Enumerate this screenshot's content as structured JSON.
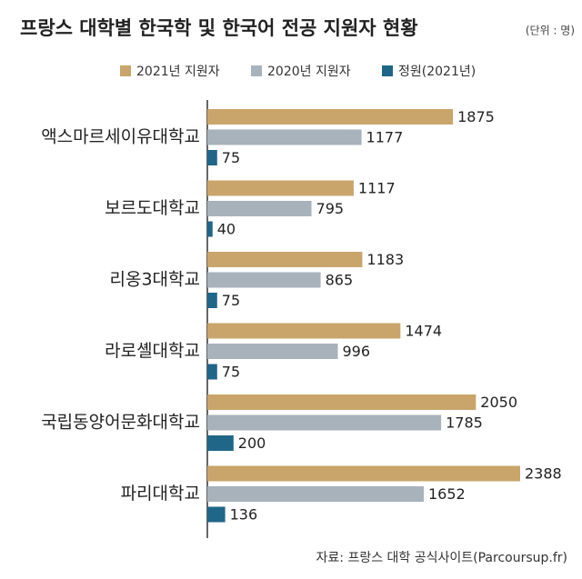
{
  "chart_data": {
    "type": "bar",
    "orientation": "horizontal",
    "title": "프랑스 대학별 한국학 및 한국어 전공 지원자 현황",
    "unit": "(단위 : 명)",
    "source": "자료: 프랑스 대학 공식사이트(Parcoursup.fr)",
    "categories": [
      "액스마르세이유대학교",
      "보르도대학교",
      "리옹3대학교",
      "라로셸대학교",
      "국립동양어문화대학교",
      "파리대학교"
    ],
    "series": [
      {
        "name": "2021년 지원자",
        "color": "#c9a56c",
        "values": [
          1875,
          1117,
          1183,
          1474,
          2050,
          2388
        ]
      },
      {
        "name": "2020년 지원자",
        "color": "#a7b2bb",
        "values": [
          1177,
          795,
          865,
          996,
          1785,
          1652
        ]
      },
      {
        "name": "정원(2021년)",
        "color": "#1f6688",
        "values": [
          75,
          40,
          75,
          75,
          200,
          136
        ]
      }
    ]
  }
}
